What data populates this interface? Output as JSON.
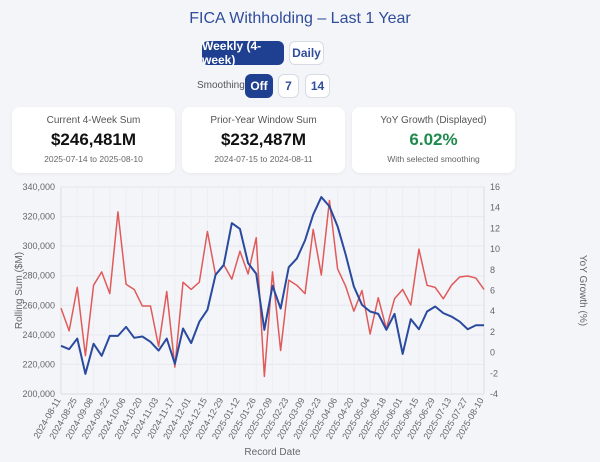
{
  "header": {
    "title": "FICA Withholding – Last 1 Year"
  },
  "view_toggle": {
    "weekly": "Weekly (4-week)",
    "daily": "Daily",
    "selected": "weekly"
  },
  "smoothing": {
    "label": "Smoothing:",
    "options": [
      "Off",
      "7",
      "14"
    ],
    "selected": "Off"
  },
  "cards": [
    {
      "label": "Current 4-Week Sum",
      "value": "$246,481M",
      "sub": "2025-07-14 to 2025-08-10"
    },
    {
      "label": "Prior-Year Window Sum",
      "value": "$232,487M",
      "sub": "2024-07-15 to 2024-08-11"
    },
    {
      "label": "YoY Growth (Displayed)",
      "value": "6.02%",
      "sub": "With selected smoothing"
    }
  ],
  "colors": {
    "rolling": "#2a4a9e",
    "yoy": "#e05a5a",
    "growth_text": "#1f8a4c"
  },
  "chart_data": {
    "type": "line",
    "xlabel": "Record Date",
    "ylabel": "Rolling Sum ($M)",
    "y2label": "YoY Growth (%)",
    "ylim": [
      200000,
      340000
    ],
    "y2lim": [
      -4,
      16
    ],
    "yticks": [
      "200,000",
      "220,000",
      "240,000",
      "260,000",
      "280,000",
      "300,000",
      "320,000",
      "340,000"
    ],
    "y2ticks": [
      "-4",
      "-2",
      "0",
      "2",
      "4",
      "6",
      "8",
      "10",
      "12",
      "14",
      "16"
    ],
    "x_start": "2024-08-11",
    "x_step_days": 7,
    "xticks": [
      "2024-08-11",
      "2024-08-25",
      "2024-09-08",
      "2024-09-22",
      "2024-10-06",
      "2024-10-20",
      "2024-11-03",
      "2024-11-17",
      "2024-12-01",
      "2024-12-15",
      "2024-12-29",
      "2025-01-12",
      "2025-01-26",
      "2025-02-09",
      "2025-02-23",
      "2025-03-09",
      "2025-03-23",
      "2025-04-06",
      "2025-04-20",
      "2025-05-04",
      "2025-05-18",
      "2025-06-01",
      "2025-06-15",
      "2025-06-29",
      "2025-07-13",
      "2025-07-27",
      "2025-08-10"
    ],
    "grid": true,
    "series": [
      {
        "name": "Rolling Sum ($M)",
        "axis": "left",
        "values": [
          232600,
          230300,
          237500,
          213600,
          234000,
          225800,
          239300,
          239300,
          245400,
          238000,
          238900,
          235300,
          229400,
          237500,
          220400,
          244300,
          234400,
          248800,
          256900,
          280600,
          287200,
          315600,
          311600,
          288500,
          281300,
          243400,
          273200,
          257800,
          285800,
          291700,
          303900,
          321300,
          333200,
          326900,
          313400,
          294200,
          272700,
          260300,
          255800,
          254200,
          243400,
          254200,
          227100,
          250600,
          243800,
          255800,
          259200,
          254700,
          252400,
          249000,
          243800,
          246500,
          246500
        ]
      },
      {
        "name": "YoY Growth (%)",
        "axis": "right",
        "values": [
          4.3,
          2.1,
          6.3,
          -0.3,
          6.5,
          7.8,
          5.7,
          13.6,
          6.6,
          6.1,
          4.5,
          4.5,
          0.6,
          5.9,
          -1.4,
          6.8,
          6.1,
          6.8,
          11.7,
          7.5,
          8.5,
          7.1,
          9.8,
          7.6,
          11.1,
          -2.3,
          7.8,
          0.2,
          7.0,
          6.5,
          5.7,
          11.9,
          7.5,
          14.7,
          8.1,
          6.4,
          4.0,
          6.0,
          1.8,
          5.3,
          2.3,
          5.2,
          6.1,
          4.6,
          10.0,
          6.5,
          6.3,
          5.2,
          6.5,
          7.3,
          7.4,
          7.2,
          6.1
        ]
      }
    ]
  }
}
